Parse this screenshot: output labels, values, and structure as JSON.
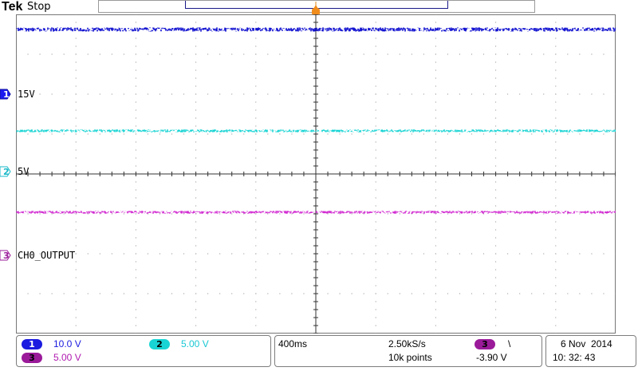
{
  "header": {
    "brand": "Tek",
    "status": "Stop"
  },
  "channels": [
    {
      "id": "1",
      "marker_label": "15V",
      "color": "#1010d0",
      "marker_color": "#1a1af0"
    },
    {
      "id": "2",
      "marker_label": "5V",
      "color": "#19d4d4",
      "marker_color": "#19d4d4"
    },
    {
      "id": "3",
      "marker_label": "CH0_OUTPUT",
      "color": "#d22ad2",
      "marker_color": "#9a1a9a"
    }
  ],
  "readout": {
    "ch1": {
      "id": "1",
      "scale": "10.0 V"
    },
    "ch2": {
      "id": "2",
      "scale": "5.00 V"
    },
    "ch3": {
      "id": "3",
      "scale": "5.00 V"
    },
    "timebase": "400ms",
    "sample_rate": "2.50kS/s",
    "record_length": "10k points",
    "trigger_source": "3",
    "trigger_slope": "\\",
    "trigger_level": "-3.90 V",
    "date": "6 Nov  2014",
    "time": "10: 32: 43"
  }
}
